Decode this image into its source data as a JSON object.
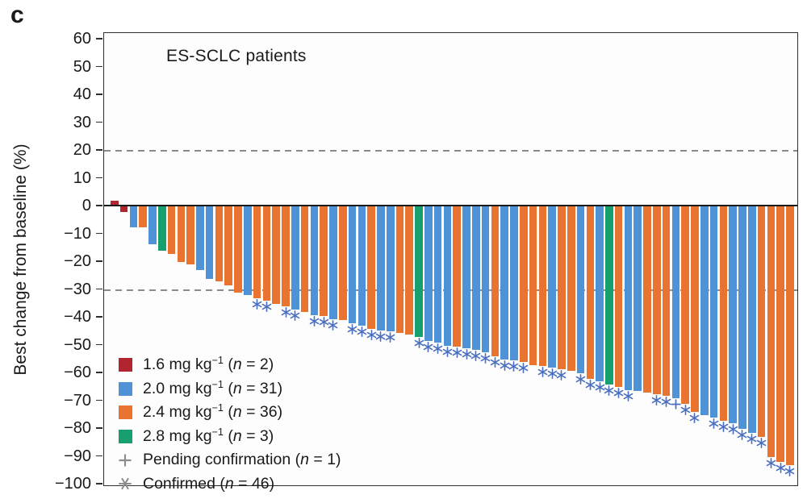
{
  "panel_label": "c",
  "colors": {
    "dose_1_6": "#b3252e",
    "dose_2_0": "#4f92d6",
    "dose_2_4": "#e8742f",
    "dose_2_8": "#17a06e",
    "marker": "#4a6fc0",
    "legend_glyph": "#8c8c8c",
    "reference_line": "#8a8a8a",
    "axis": "#2e2e2e"
  },
  "y_axis": {
    "ticks": [
      60,
      50,
      40,
      30,
      20,
      10,
      0,
      -10,
      -20,
      -30,
      -40,
      -50,
      -60,
      -70,
      -80,
      -90,
      -100
    ]
  },
  "legend": {
    "rows": [
      {
        "kind": "swatch",
        "color": "#b3252e",
        "dose": "1.6 mg kg",
        "sup": "−1",
        "mid": " (",
        "n": "n",
        "post": " = 2)"
      },
      {
        "kind": "swatch",
        "color": "#4f92d6",
        "dose": "2.0 mg kg",
        "sup": "−1",
        "mid": " (",
        "n": "n",
        "post": " = 31)"
      },
      {
        "kind": "swatch",
        "color": "#e8742f",
        "dose": "2.4 mg kg",
        "sup": "−1",
        "mid": " (",
        "n": "n",
        "post": " = 36)"
      },
      {
        "kind": "swatch",
        "color": "#17a06e",
        "dose": "2.8 mg kg",
        "sup": "−1",
        "mid": " (",
        "n": "n",
        "post": " = 3)"
      },
      {
        "kind": "plus",
        "dose": "Pending confirmation",
        "sup": "",
        "mid": " (",
        "n": "n",
        "post": " = 1)"
      },
      {
        "kind": "asterisk",
        "dose": "Confirmed",
        "sup": "",
        "mid": " (",
        "n": "n",
        "post": " = 46)"
      }
    ]
  },
  "chart_data": {
    "type": "bar",
    "subtype": "waterfall",
    "title": "ES-SCLC patients",
    "xlabel": "",
    "ylabel": "Best change from baseline (%)",
    "ylim": [
      -100,
      60
    ],
    "ytick_interval": 10,
    "grid": false,
    "reference_lines": [
      20,
      -30
    ],
    "legend_position": "inside-lower-left",
    "groups": {
      "1.6": {
        "color": "#b3252e",
        "n": 2
      },
      "2.0": {
        "color": "#4f92d6",
        "n": 31
      },
      "2.4": {
        "color": "#e8742f",
        "n": 36
      },
      "2.8": {
        "color": "#17a06e",
        "n": 3
      }
    },
    "marker_counts": {
      "pending": 1,
      "confirmed": 46
    },
    "bars": [
      {
        "v": 2,
        "g": "1.6"
      },
      {
        "v": -2,
        "g": "1.6"
      },
      {
        "v": -7.5,
        "g": "2.0"
      },
      {
        "v": -7.5,
        "g": "2.4"
      },
      {
        "v": -13.5,
        "g": "2.0"
      },
      {
        "v": -16,
        "g": "2.8"
      },
      {
        "v": -17,
        "g": "2.4"
      },
      {
        "v": -20,
        "g": "2.4"
      },
      {
        "v": -21,
        "g": "2.4"
      },
      {
        "v": -23,
        "g": "2.0"
      },
      {
        "v": -26,
        "g": "2.0"
      },
      {
        "v": -27,
        "g": "2.4"
      },
      {
        "v": -28.5,
        "g": "2.4"
      },
      {
        "v": -31,
        "g": "2.4"
      },
      {
        "v": -32,
        "g": "2.0"
      },
      {
        "v": -33,
        "g": "2.4",
        "m": "confirmed"
      },
      {
        "v": -34,
        "g": "2.4",
        "m": "confirmed"
      },
      {
        "v": -35,
        "g": "2.4"
      },
      {
        "v": -36,
        "g": "2.4",
        "m": "confirmed"
      },
      {
        "v": -37,
        "g": "2.0",
        "m": "confirmed"
      },
      {
        "v": -38,
        "g": "2.4"
      },
      {
        "v": -39,
        "g": "2.0",
        "m": "confirmed"
      },
      {
        "v": -39.5,
        "g": "2.4",
        "m": "confirmed"
      },
      {
        "v": -40.5,
        "g": "2.0",
        "m": "confirmed"
      },
      {
        "v": -41,
        "g": "2.4"
      },
      {
        "v": -42,
        "g": "2.0",
        "m": "confirmed"
      },
      {
        "v": -43,
        "g": "2.0",
        "m": "confirmed"
      },
      {
        "v": -44,
        "g": "2.4",
        "m": "confirmed"
      },
      {
        "v": -44.5,
        "g": "2.0",
        "m": "confirmed"
      },
      {
        "v": -45,
        "g": "2.0",
        "m": "confirmed"
      },
      {
        "v": -45.5,
        "g": "2.4"
      },
      {
        "v": -46,
        "g": "2.4"
      },
      {
        "v": -47,
        "g": "2.8",
        "m": "confirmed"
      },
      {
        "v": -48.5,
        "g": "2.0",
        "m": "confirmed"
      },
      {
        "v": -49,
        "g": "2.0",
        "m": "confirmed"
      },
      {
        "v": -50,
        "g": "2.0",
        "m": "confirmed"
      },
      {
        "v": -50.5,
        "g": "2.4",
        "m": "confirmed"
      },
      {
        "v": -51,
        "g": "2.0",
        "m": "confirmed"
      },
      {
        "v": -51.5,
        "g": "2.0",
        "m": "confirmed"
      },
      {
        "v": -52.5,
        "g": "2.0",
        "m": "confirmed"
      },
      {
        "v": -54,
        "g": "2.4",
        "m": "confirmed"
      },
      {
        "v": -55,
        "g": "2.0",
        "m": "confirmed"
      },
      {
        "v": -55.5,
        "g": "2.0",
        "m": "confirmed"
      },
      {
        "v": -56,
        "g": "2.4",
        "m": "confirmed"
      },
      {
        "v": -57,
        "g": "2.4"
      },
      {
        "v": -57.5,
        "g": "2.4",
        "m": "confirmed"
      },
      {
        "v": -58,
        "g": "2.0",
        "m": "confirmed"
      },
      {
        "v": -58.5,
        "g": "2.4",
        "m": "confirmed"
      },
      {
        "v": -59,
        "g": "2.4"
      },
      {
        "v": -60,
        "g": "2.0",
        "m": "confirmed"
      },
      {
        "v": -62,
        "g": "2.4",
        "m": "confirmed"
      },
      {
        "v": -63,
        "g": "2.0",
        "m": "confirmed"
      },
      {
        "v": -64,
        "g": "2.8",
        "m": "confirmed"
      },
      {
        "v": -65,
        "g": "2.4",
        "m": "confirmed"
      },
      {
        "v": -66,
        "g": "2.0",
        "m": "confirmed"
      },
      {
        "v": -66.5,
        "g": "2.0"
      },
      {
        "v": -67,
        "g": "2.4"
      },
      {
        "v": -67.5,
        "g": "2.4",
        "m": "confirmed"
      },
      {
        "v": -68,
        "g": "2.4",
        "m": "confirmed"
      },
      {
        "v": -69,
        "g": "2.0",
        "m": "pending"
      },
      {
        "v": -71,
        "g": "2.4",
        "m": "confirmed"
      },
      {
        "v": -74,
        "g": "2.4",
        "m": "confirmed"
      },
      {
        "v": -75,
        "g": "2.0"
      },
      {
        "v": -76,
        "g": "2.0",
        "m": "confirmed"
      },
      {
        "v": -77,
        "g": "2.4",
        "m": "confirmed"
      },
      {
        "v": -78,
        "g": "2.0",
        "m": "confirmed"
      },
      {
        "v": -80,
        "g": "2.0",
        "m": "confirmed"
      },
      {
        "v": -81.5,
        "g": "2.0",
        "m": "confirmed"
      },
      {
        "v": -83,
        "g": "2.4",
        "m": "confirmed"
      },
      {
        "v": -90,
        "g": "2.4",
        "m": "confirmed"
      },
      {
        "v": -92,
        "g": "2.4",
        "m": "confirmed"
      },
      {
        "v": -93,
        "g": "2.4",
        "m": "confirmed"
      }
    ]
  }
}
